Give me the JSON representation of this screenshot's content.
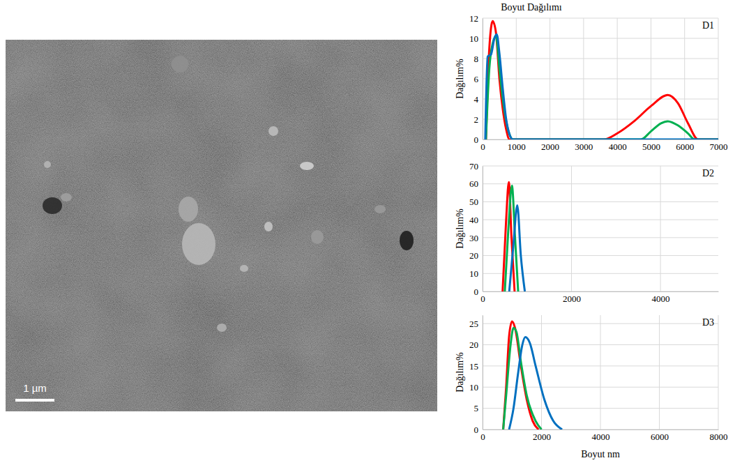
{
  "figure": {
    "title": "Boyut Dağılımı",
    "scale_bar": "1 µm"
  },
  "chart_data": [
    {
      "type": "line",
      "title": "D1",
      "y_label": "Dağılım%",
      "xlim": [
        0,
        7000
      ],
      "xticks": [
        0,
        1000,
        2000,
        3000,
        4000,
        5000,
        6000,
        7000
      ],
      "ylim": [
        0,
        12
      ],
      "yticks": [
        0,
        2,
        4,
        6,
        8,
        10,
        12
      ],
      "grid": true,
      "series": [
        {
          "color": "#ff0000",
          "x": [
            100,
            200,
            300,
            400,
            500,
            600,
            700,
            800,
            3600,
            4000,
            4500,
            5000,
            5500,
            5800,
            6100,
            6400,
            7000
          ],
          "values": [
            0,
            9,
            11.7,
            10.5,
            6,
            3,
            1,
            0,
            0,
            0.6,
            1.8,
            3.3,
            4.4,
            3.6,
            1.6,
            0,
            0
          ]
        },
        {
          "color": "#00b050",
          "x": [
            100,
            200,
            300,
            400,
            500,
            600,
            700,
            800,
            900,
            4700,
            5000,
            5300,
            5500,
            5800,
            6100,
            6300,
            7000
          ],
          "values": [
            0,
            7,
            9.5,
            10.2,
            7,
            4,
            1.8,
            0.5,
            0,
            0,
            0.8,
            1.6,
            1.8,
            1.4,
            0.6,
            0,
            0
          ]
        },
        {
          "color": "#0070c0",
          "x": [
            80,
            150,
            250,
            350,
            420,
            500,
            600,
            700,
            800,
            900,
            7000
          ],
          "values": [
            0,
            8.2,
            8.4,
            10,
            10.4,
            8.5,
            5,
            2,
            0.5,
            0,
            0
          ]
        }
      ]
    },
    {
      "type": "line",
      "title": "D2",
      "y_label": "Dağılım%",
      "xlim": [
        0,
        5300
      ],
      "xticks": [
        0,
        2000,
        4000
      ],
      "ylim": [
        0,
        70
      ],
      "yticks": [
        0,
        10,
        20,
        30,
        40,
        50,
        60,
        70
      ],
      "grid": true,
      "series": [
        {
          "color": "#ff0000",
          "x": [
            450,
            530,
            590,
            650,
            720
          ],
          "values": [
            0,
            40,
            61,
            30,
            0
          ]
        },
        {
          "color": "#00b050",
          "x": [
            500,
            580,
            660,
            730,
            800
          ],
          "values": [
            0,
            35,
            59,
            30,
            0
          ]
        },
        {
          "color": "#0070c0",
          "x": [
            600,
            690,
            780,
            860,
            950
          ],
          "values": [
            0,
            25,
            48,
            20,
            0
          ]
        }
      ]
    },
    {
      "type": "line",
      "title": "D3",
      "y_label": "Dağılım%",
      "x_label": "Boyut nm",
      "xlim": [
        0,
        8000
      ],
      "xticks": [
        0,
        2000,
        4000,
        6000,
        8000
      ],
      "ylim": [
        0,
        27
      ],
      "yticks": [
        0,
        5,
        10,
        15,
        20,
        25
      ],
      "grid": true,
      "series": [
        {
          "color": "#ff0000",
          "x": [
            700,
            800,
            900,
            1000,
            1100,
            1300,
            1500,
            1700,
            1900
          ],
          "values": [
            0,
            10,
            22,
            25.5,
            24,
            15,
            7,
            2,
            0
          ]
        },
        {
          "color": "#00b050",
          "x": [
            700,
            800,
            950,
            1050,
            1150,
            1300,
            1500,
            1800,
            2000
          ],
          "values": [
            0,
            8,
            20,
            24,
            23,
            16,
            8,
            2,
            0
          ]
        },
        {
          "color": "#0070c0",
          "x": [
            900,
            1050,
            1200,
            1350,
            1450,
            1600,
            1800,
            2100,
            2400,
            2700
          ],
          "values": [
            0,
            5,
            13,
            20,
            21.8,
            20.5,
            15,
            7,
            2,
            0
          ]
        }
      ]
    }
  ]
}
